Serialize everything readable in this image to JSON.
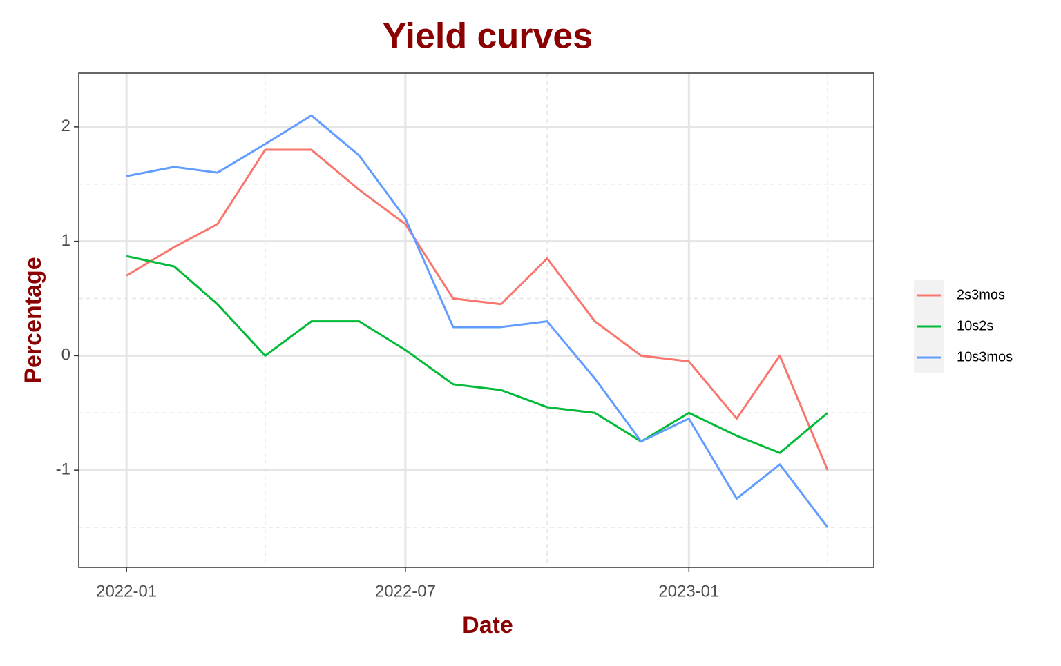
{
  "chart_data": {
    "type": "line",
    "title": "Yield curves",
    "x_label": "Date",
    "y_label": "Percentage",
    "x": [
      "2022-01",
      "2022-02",
      "2022-03",
      "2022-04",
      "2022-05",
      "2022-06",
      "2022-07",
      "2022-08",
      "2022-09",
      "2022-10",
      "2022-11",
      "2022-12",
      "2023-01",
      "2023-02",
      "2023-03",
      "2023-04"
    ],
    "series": [
      {
        "name": "2s3mos",
        "color": "#F8766D",
        "values": [
          0.7,
          0.95,
          1.15,
          1.8,
          1.8,
          1.45,
          1.15,
          0.5,
          0.45,
          0.85,
          0.3,
          0.0,
          -0.05,
          -0.55,
          0.0,
          -1.0
        ]
      },
      {
        "name": "10s2s",
        "color": "#00BA38",
        "values": [
          0.87,
          0.78,
          0.45,
          0.0,
          0.3,
          0.3,
          0.05,
          -0.25,
          -0.3,
          -0.45,
          -0.5,
          -0.75,
          -0.5,
          -0.7,
          -0.85,
          -0.5
        ]
      },
      {
        "name": "10s3mos",
        "color": "#619CFF",
        "values": [
          1.57,
          1.65,
          1.6,
          1.85,
          2.1,
          1.75,
          1.2,
          0.25,
          0.25,
          0.3,
          -0.2,
          -0.75,
          -0.55,
          -1.25,
          -0.95,
          -1.5
        ]
      }
    ],
    "xlim": [
      "2021-12",
      "2023-05"
    ],
    "xticks": [
      "2022-01",
      "2022-07",
      "2023-01"
    ],
    "xminor": [
      "2022-04",
      "2022-10",
      "2023-04"
    ],
    "ylim": [
      -1.85,
      2.47
    ],
    "yticks": [
      -1,
      0,
      1,
      2
    ],
    "yminor": [
      -1.5,
      -0.5,
      0.5,
      1.5
    ],
    "grid": true,
    "legend": "right"
  }
}
